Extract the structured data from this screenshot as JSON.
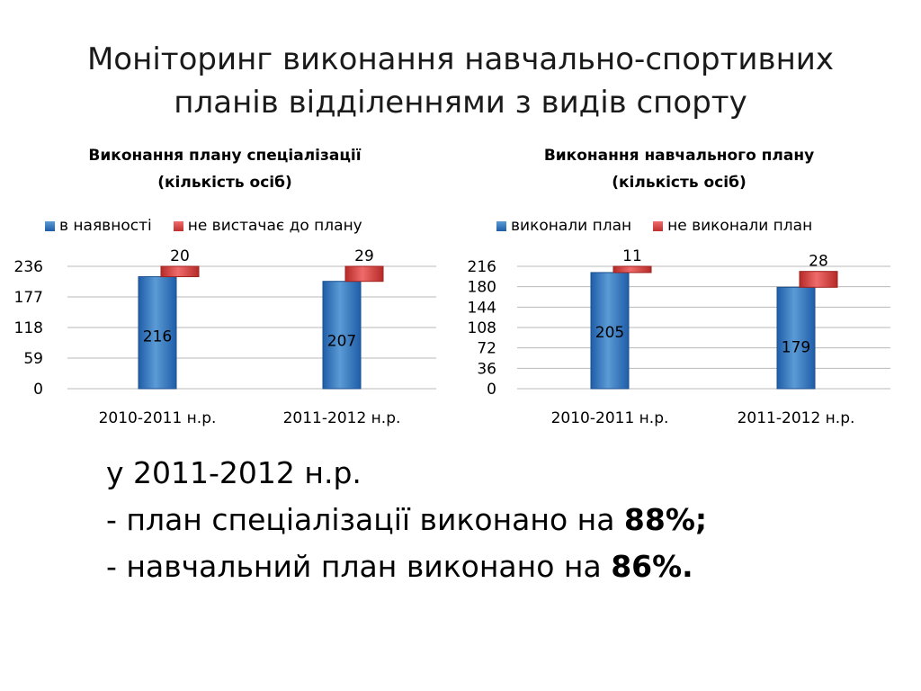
{
  "slide": {
    "title_line1": "Моніторинг виконання навчально-спортивних",
    "title_line2": "планів відділеннями  з видів спорту"
  },
  "colors": {
    "blue": "#2e6fbf",
    "red": "#d23a36"
  },
  "chart_data": [
    {
      "type": "bar",
      "stacked": true,
      "title_line1": "Виконання плану спеціалізації",
      "title_line2": "(кількість осіб)",
      "categories": [
        "2010-2011 н.р.",
        "2011-2012 н.р."
      ],
      "series": [
        {
          "name": "в наявності",
          "values": [
            216,
            207
          ]
        },
        {
          "name": "не вистачає до плану",
          "values": [
            20,
            29
          ]
        }
      ],
      "yticks": [
        "0",
        "59",
        "118",
        "177",
        "236"
      ],
      "ylim": [
        0,
        236
      ],
      "grid": true,
      "legend": "top"
    },
    {
      "type": "bar",
      "stacked": true,
      "title_line1": "Виконання навчального плану",
      "title_line2": "(кількість осіб)",
      "categories": [
        "2010-2011 н.р.",
        "2011-2012 н.р."
      ],
      "series": [
        {
          "name": "виконали план",
          "values": [
            205,
            179
          ]
        },
        {
          "name": "не виконали план",
          "values": [
            11,
            28
          ]
        }
      ],
      "yticks": [
        "0",
        "36",
        "72",
        "108",
        "144",
        "180",
        "216"
      ],
      "ylim": [
        0,
        216
      ],
      "grid": true,
      "legend": "top"
    }
  ],
  "summary": {
    "line1": "у 2011-2012 н.р.",
    "line2_text": "- план спеціалізації виконано на ",
    "line2_value": "88%;",
    "line3_text": "- навчальний план виконано  на ",
    "line3_value": "86%."
  }
}
